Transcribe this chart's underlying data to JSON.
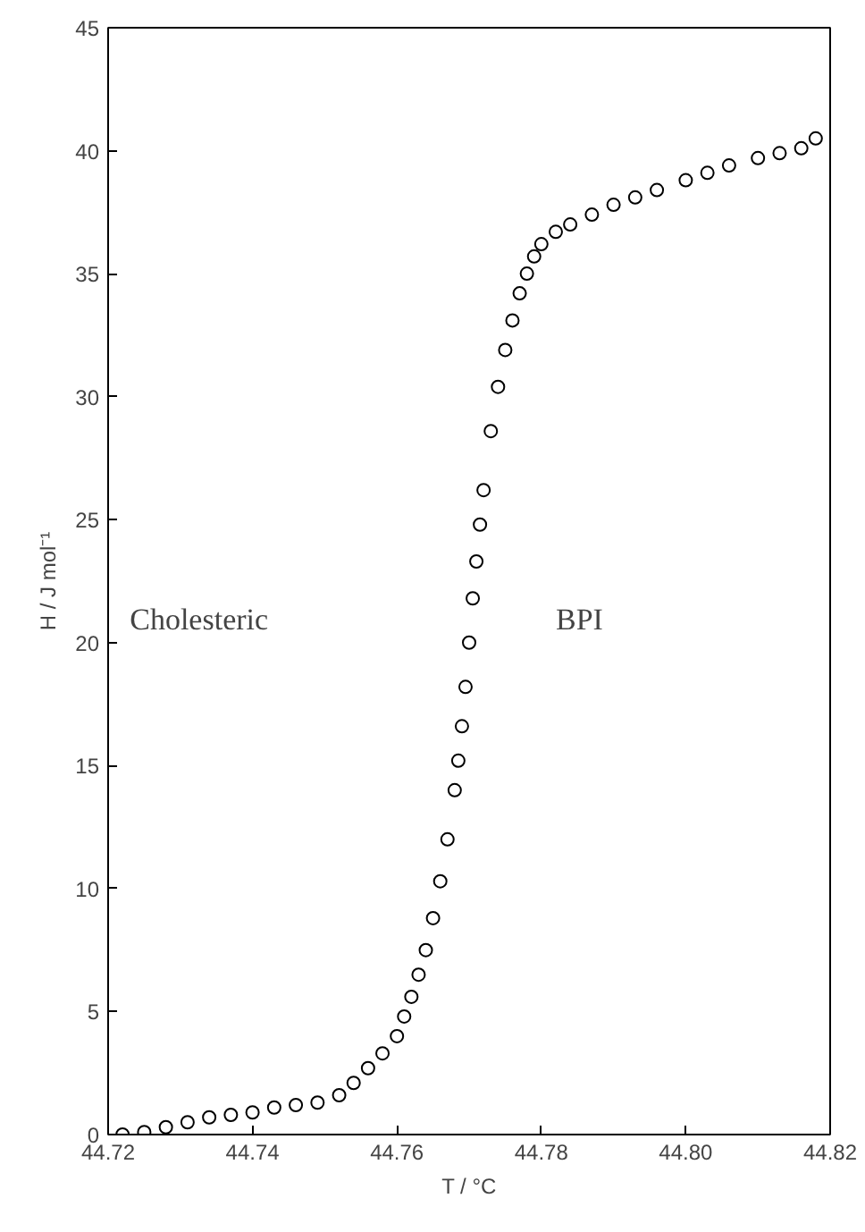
{
  "chart_data": {
    "type": "scatter",
    "xlabel": "T / °C",
    "ylabel": "H / J mol⁻¹",
    "marker": "circle",
    "grid": false,
    "xlim": [
      44.72,
      44.82
    ],
    "xticks": [
      {
        "value": 44.72,
        "label": "44.72"
      },
      {
        "value": 44.74,
        "label": "44.74"
      },
      {
        "value": 44.76,
        "label": "44.76"
      },
      {
        "value": 44.78,
        "label": "44.78"
      },
      {
        "value": 44.8,
        "label": "44.80"
      },
      {
        "value": 44.82,
        "label": "44.82"
      }
    ],
    "ylim": [
      0,
      45
    ],
    "yticks": [
      0,
      5,
      10,
      15,
      20,
      25,
      30,
      35,
      40,
      45
    ],
    "annotations": [
      "Cholesteric",
      "BPI"
    ],
    "series": [
      {
        "color": "#000000",
        "x": [
          44.722,
          44.725,
          44.728,
          44.731,
          44.734,
          44.737,
          44.74,
          44.743,
          44.746,
          44.749,
          44.752,
          44.754,
          44.756,
          44.758,
          44.76,
          44.761,
          44.762,
          44.763,
          44.764,
          44.765,
          44.766,
          44.767,
          44.768,
          44.7685,
          44.769,
          44.7695,
          44.77,
          44.7705,
          44.771,
          44.7715,
          44.772,
          44.773,
          44.774,
          44.775,
          44.776,
          44.777,
          44.778,
          44.779,
          44.78,
          44.782,
          44.784,
          44.787,
          44.79,
          44.793,
          44.796,
          44.8,
          44.803,
          44.806,
          44.81,
          44.813,
          44.816,
          44.818
        ],
        "values": [
          0.0,
          0.1,
          0.3,
          0.5,
          0.7,
          0.8,
          0.9,
          1.1,
          1.2,
          1.3,
          1.6,
          2.1,
          2.7,
          3.3,
          4.0,
          4.8,
          5.6,
          6.5,
          7.5,
          8.8,
          10.3,
          12.0,
          14.0,
          15.2,
          16.6,
          18.2,
          20.0,
          21.8,
          23.3,
          24.8,
          26.2,
          28.6,
          30.4,
          31.9,
          33.1,
          34.2,
          35.0,
          35.7,
          36.2,
          36.7,
          37.0,
          37.4,
          37.8,
          38.1,
          38.4,
          38.8,
          39.1,
          39.4,
          39.7,
          39.9,
          40.1,
          40.5
        ]
      }
    ]
  }
}
